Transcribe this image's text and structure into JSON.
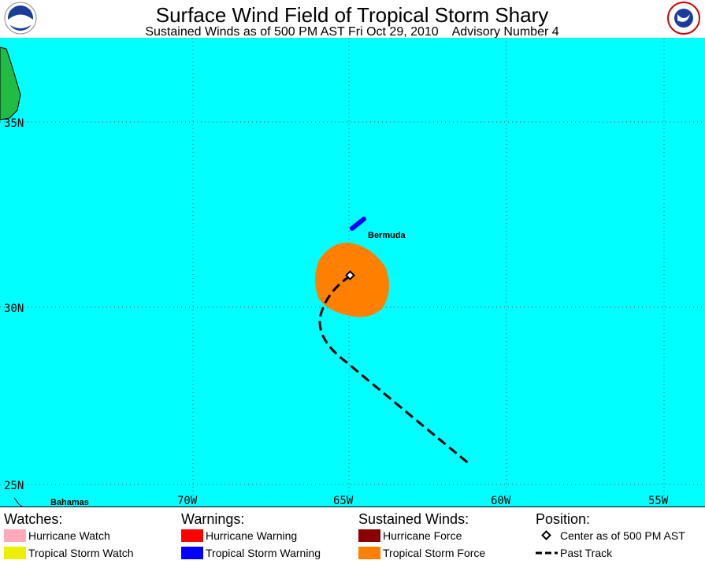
{
  "header": {
    "title": "Surface Wind Field of Tropical Storm Shary",
    "subtitle": "Sustained Winds as of 500 PM AST Fri Oct 29, 2010    Advisory Number 4"
  },
  "map": {
    "lat_labels": [
      "35N",
      "30N",
      "25N"
    ],
    "lon_labels": [
      "70W",
      "65W",
      "60W",
      "55W"
    ],
    "places": [
      "Bermuda",
      "Bahamas"
    ]
  },
  "legend": {
    "watches": {
      "heading": "Watches:",
      "items": [
        "Hurricane Watch",
        "Tropical Storm Watch"
      ]
    },
    "warnings": {
      "heading": "Warnings:",
      "items": [
        "Hurricane Warning",
        "Tropical Storm Warning"
      ]
    },
    "winds": {
      "heading": "Sustained Winds:",
      "items": [
        "Hurricane Force",
        "Tropical Storm Force"
      ]
    },
    "position": {
      "heading": "Position:",
      "items": [
        "Center as of 500 PM AST",
        "Past Track"
      ]
    }
  }
}
